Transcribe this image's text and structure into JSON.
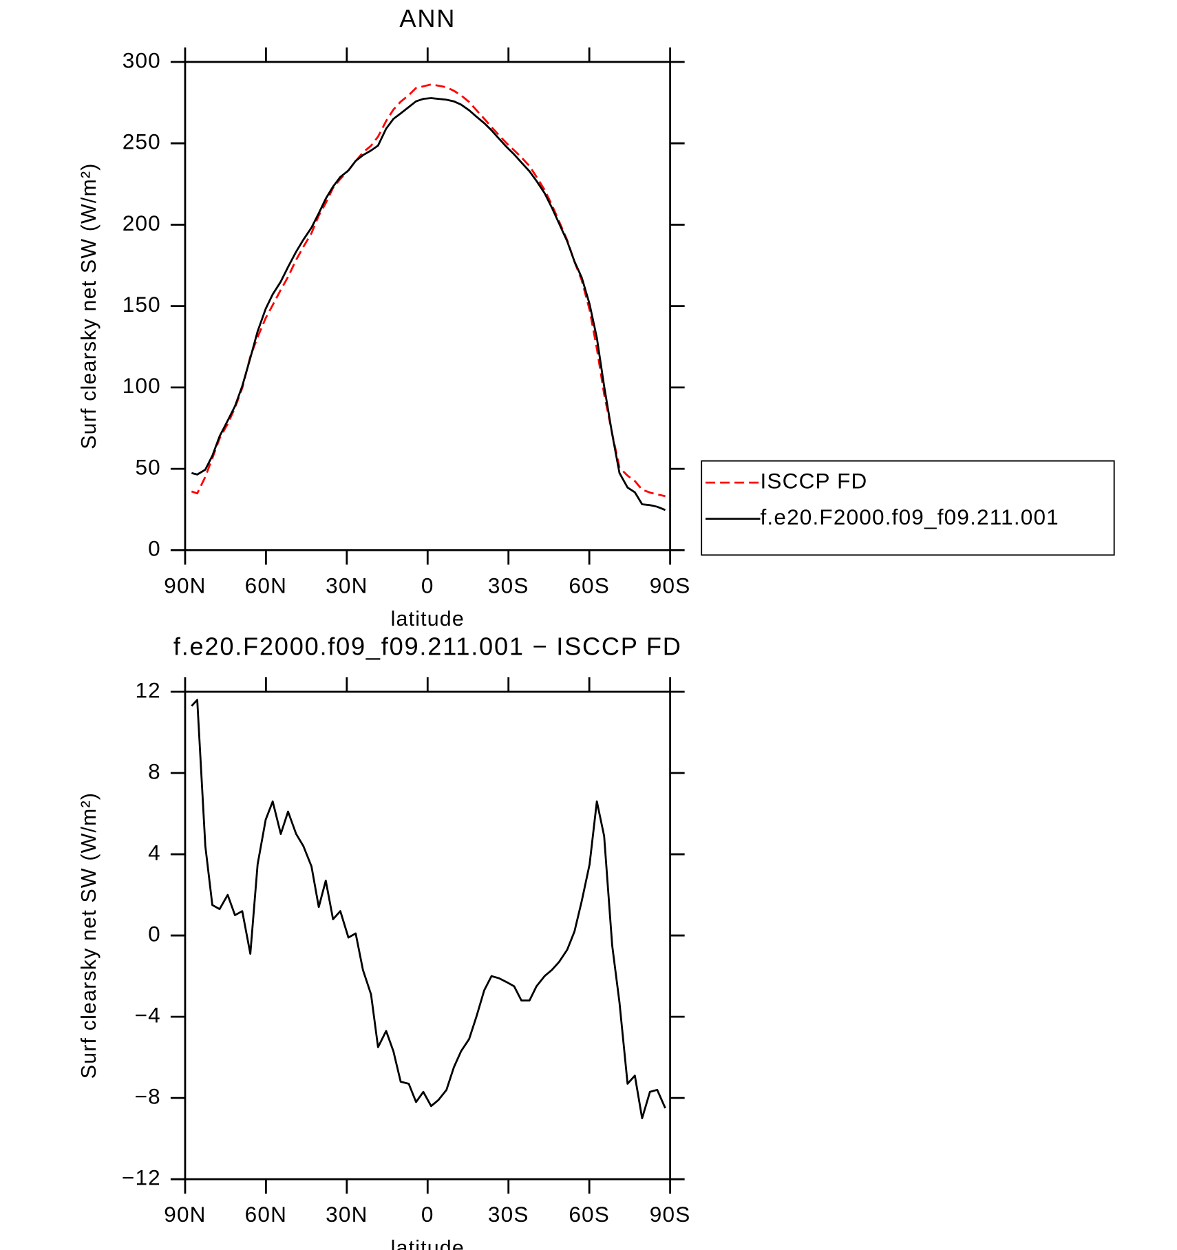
{
  "chart_data": [
    {
      "type": "line",
      "title": "ANN",
      "xlabel": "latitude",
      "ylabel": "Surf clearsky net SW (W/m²)",
      "x": [
        87.6,
        85.5,
        82.5,
        79.9,
        77.2,
        74.2,
        71.5,
        68.8,
        65.8,
        63.1,
        60.1,
        57.5,
        54.5,
        51.8,
        48.8,
        46.1,
        43.1,
        40.4,
        37.8,
        35.1,
        32.4,
        29.4,
        26.7,
        24.0,
        21.0,
        18.4,
        15.4,
        12.7,
        10.0,
        7.0,
        4.3,
        1.6,
        -1.3,
        -4.0,
        -7.0,
        -9.7,
        -12.4,
        -15.4,
        -18.1,
        -21.0,
        -23.7,
        -26.4,
        -29.4,
        -32.1,
        -34.8,
        -37.8,
        -40.4,
        -43.4,
        -46.1,
        -48.8,
        -51.8,
        -54.5,
        -57.2,
        -60.1,
        -62.8,
        -65.5,
        -68.5,
        -71.2,
        -74.2,
        -76.9,
        -79.6,
        -82.5,
        -85.2,
        -88.2
      ],
      "series": [
        {
          "name": "ISCCP FD",
          "color": "#ff0000",
          "dash": "dashed",
          "values": [
            36.1,
            34.9,
            45.1,
            56.5,
            68.7,
            77.6,
            87.5,
            99.6,
            119.0,
            130.9,
            142.6,
            150.6,
            160.0,
            167.9,
            178.4,
            186.4,
            194.8,
            205.6,
            213.3,
            222.6,
            228.1,
            233.4,
            239.1,
            244.4,
            248.5,
            254.1,
            263.7,
            270.7,
            275.6,
            279.6,
            284.0,
            285.0,
            286.2,
            285.4,
            284.4,
            282.3,
            279.5,
            275.4,
            270.4,
            265.1,
            260.0,
            255.1,
            249.9,
            245.7,
            241.4,
            236.0,
            229.4,
            221.4,
            212.2,
            202.0,
            190.5,
            177.2,
            165.8,
            147.7,
            123.9,
            95.9,
            71.7,
            50.7,
            45.8,
            42.5,
            37.2,
            35.4,
            34.3,
            33.2
          ]
        },
        {
          "name": "f.e20.F2000.f09_f09.211.001",
          "color": "#000000",
          "values": [
            47.4,
            46.5,
            49.5,
            58.0,
            70.0,
            79.6,
            88.5,
            100.8,
            118.1,
            134.4,
            148.3,
            157.2,
            165.0,
            174.0,
            183.4,
            190.8,
            198.2,
            207.0,
            216.0,
            223.4,
            229.3,
            233.3,
            239.2,
            242.7,
            245.6,
            248.6,
            259.0,
            265.0,
            268.4,
            272.3,
            275.8,
            277.3,
            277.8,
            277.3,
            276.8,
            275.8,
            273.8,
            270.3,
            266.4,
            262.4,
            258.0,
            253.0,
            247.6,
            243.2,
            238.2,
            232.8,
            226.9,
            219.4,
            210.5,
            200.7,
            189.8,
            177.4,
            167.5,
            151.2,
            130.5,
            100.8,
            71.2,
            47.4,
            38.5,
            35.6,
            28.2,
            27.7,
            26.7,
            24.7
          ]
        }
      ],
      "xlim": [
        90,
        -90
      ],
      "xticks": [
        {
          "value": 90,
          "label": "90N"
        },
        {
          "value": 60,
          "label": "60N"
        },
        {
          "value": 30,
          "label": "30N"
        },
        0,
        {
          "value": -30,
          "label": "30S"
        },
        {
          "value": -60,
          "label": "60S"
        },
        {
          "value": -90,
          "label": "90S"
        }
      ],
      "ylim": [
        0,
        300
      ],
      "yticks": [
        0,
        50,
        100,
        150,
        200,
        250,
        300
      ],
      "legend": "right"
    },
    {
      "type": "line",
      "title": "f.e20.F2000.f09_f09.211.001 − ISCCP FD",
      "xlabel": "latitude",
      "ylabel": "Surf clearsky net SW (W/m²)",
      "x": [
        87.6,
        85.5,
        82.5,
        79.9,
        77.2,
        74.2,
        71.5,
        68.8,
        65.8,
        63.1,
        60.1,
        57.5,
        54.5,
        51.8,
        48.8,
        46.1,
        43.1,
        40.4,
        37.8,
        35.1,
        32.4,
        29.4,
        26.7,
        24.0,
        21.0,
        18.4,
        15.4,
        12.7,
        10.0,
        7.0,
        4.3,
        1.6,
        -1.3,
        -4.0,
        -7.0,
        -9.7,
        -12.4,
        -15.4,
        -18.1,
        -21.0,
        -23.7,
        -26.4,
        -29.4,
        -32.1,
        -34.8,
        -37.8,
        -40.4,
        -43.4,
        -46.1,
        -48.8,
        -51.8,
        -54.5,
        -57.2,
        -60.1,
        -62.8,
        -65.5,
        -68.5,
        -71.2,
        -74.2,
        -76.9,
        -79.6,
        -82.5,
        -85.2,
        -88.2
      ],
      "series": [
        {
          "color": "#000000",
          "values": [
            11.3,
            11.6,
            4.4,
            1.5,
            1.3,
            2.0,
            1.0,
            1.2,
            -0.9,
            3.5,
            5.7,
            6.6,
            5.0,
            6.1,
            5.0,
            4.4,
            3.4,
            1.4,
            2.7,
            0.8,
            1.2,
            -0.1,
            0.1,
            -1.7,
            -2.9,
            -5.5,
            -4.7,
            -5.7,
            -7.2,
            -7.3,
            -8.2,
            -7.7,
            -8.4,
            -8.1,
            -7.6,
            -6.5,
            -5.7,
            -5.1,
            -4.0,
            -2.7,
            -2.0,
            -2.1,
            -2.3,
            -2.5,
            -3.2,
            -3.2,
            -2.5,
            -2.0,
            -1.7,
            -1.3,
            -0.7,
            0.2,
            1.7,
            3.5,
            6.6,
            4.9,
            -0.5,
            -3.3,
            -7.3,
            -6.9,
            -9.0,
            -7.7,
            -7.6,
            -8.5
          ]
        }
      ],
      "xlim": [
        90,
        -90
      ],
      "xticks": [
        {
          "value": 90,
          "label": "90N"
        },
        {
          "value": 60,
          "label": "60N"
        },
        {
          "value": 30,
          "label": "30N"
        },
        0,
        {
          "value": -30,
          "label": "30S"
        },
        {
          "value": -60,
          "label": "60S"
        },
        {
          "value": -90,
          "label": "90S"
        }
      ],
      "ylim": [
        -12,
        12
      ],
      "yticks": [
        {
          "value": -12,
          "label": "−12"
        },
        {
          "value": -8,
          "label": "−8"
        },
        {
          "value": -4,
          "label": "−4"
        },
        0,
        4,
        8,
        12
      ]
    }
  ]
}
